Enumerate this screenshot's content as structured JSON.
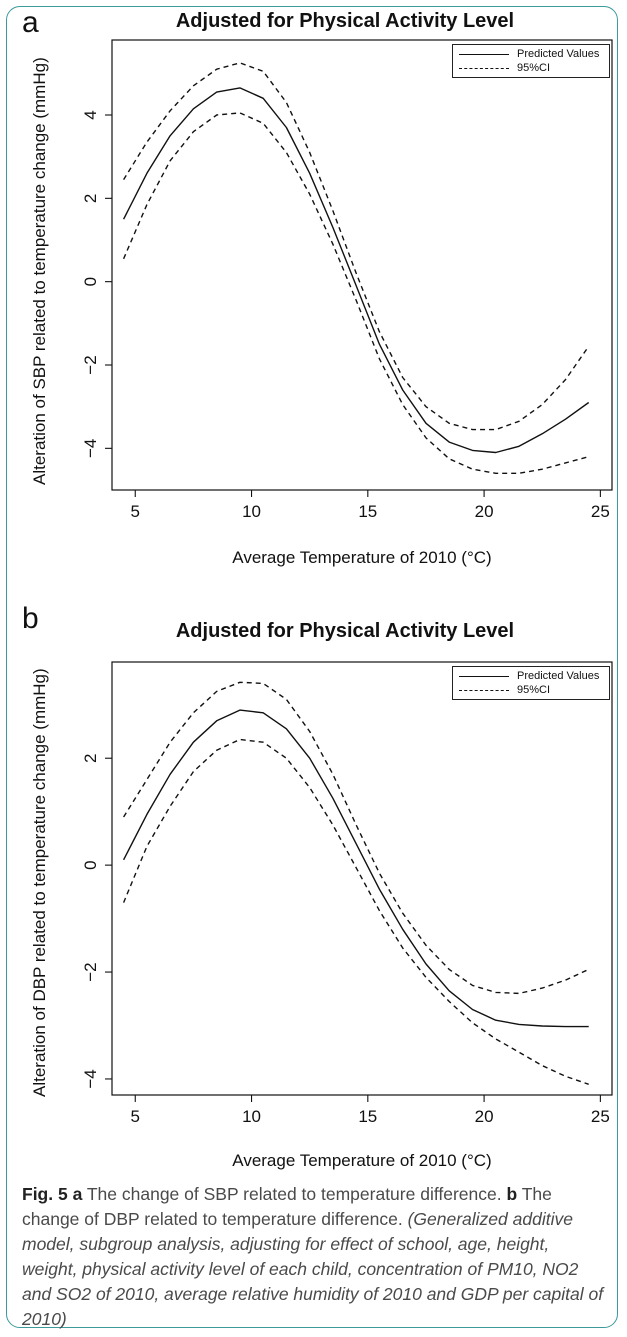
{
  "chart_data": [
    {
      "type": "line",
      "panel_label": "a",
      "title": "Adjusted for Physical Activity Level",
      "xlabel": "Average Temperature of 2010 (°C)",
      "ylabel": "Alteration of SBP related to temperature change (mmHg)",
      "xlim": [
        4,
        25.5
      ],
      "ylim": [
        -5,
        5.8
      ],
      "x_ticks": [
        5,
        10,
        15,
        20,
        25
      ],
      "y_ticks": [
        -4,
        -2,
        0,
        2,
        4
      ],
      "legend_position": "top-right",
      "grid": false,
      "series": [
        {
          "name": "Predicted Values",
          "style": "solid",
          "x": [
            4.5,
            5.5,
            6.5,
            7.5,
            8.5,
            9.5,
            10.5,
            11.5,
            12.5,
            13.5,
            14.5,
            15.5,
            16.5,
            17.5,
            18.5,
            19.5,
            20.5,
            21.5,
            22.5,
            23.5,
            24.5
          ],
          "y": [
            1.5,
            2.6,
            3.5,
            4.15,
            4.55,
            4.65,
            4.4,
            3.7,
            2.6,
            1.3,
            -0.1,
            -1.5,
            -2.6,
            -3.4,
            -3.85,
            -4.05,
            -4.1,
            -3.95,
            -3.65,
            -3.3,
            -2.9
          ]
        },
        {
          "name": "95%CI",
          "style": "dashed",
          "x": [
            4.5,
            5.5,
            6.5,
            7.5,
            8.5,
            9.5,
            10.5,
            11.5,
            12.5,
            13.5,
            14.5,
            15.5,
            16.5,
            17.5,
            18.5,
            19.5,
            20.5,
            21.5,
            22.5,
            23.5,
            24.5
          ],
          "y": [
            2.45,
            3.35,
            4.1,
            4.7,
            5.1,
            5.25,
            5.05,
            4.3,
            3.1,
            1.7,
            0.2,
            -1.2,
            -2.3,
            -3.0,
            -3.4,
            -3.55,
            -3.55,
            -3.35,
            -2.95,
            -2.35,
            -1.55
          ]
        },
        {
          "name": "",
          "style": "dashed",
          "x": [
            4.5,
            5.5,
            6.5,
            7.5,
            8.5,
            9.5,
            10.5,
            11.5,
            12.5,
            13.5,
            14.5,
            15.5,
            16.5,
            17.5,
            18.5,
            19.5,
            20.5,
            21.5,
            22.5,
            23.5,
            24.5
          ],
          "y": [
            0.55,
            1.85,
            2.9,
            3.6,
            4.0,
            4.05,
            3.8,
            3.1,
            2.1,
            0.9,
            -0.45,
            -1.85,
            -2.95,
            -3.75,
            -4.25,
            -4.5,
            -4.6,
            -4.6,
            -4.5,
            -4.35,
            -4.2
          ]
        }
      ]
    },
    {
      "type": "line",
      "panel_label": "b",
      "title": "Adjusted for Physical Activity Level",
      "xlabel": "Average Temperature of 2010 (°C)",
      "ylabel": "Alteration of DBP related to temperature change (mmHg)",
      "xlim": [
        4,
        25.5
      ],
      "ylim": [
        -4.3,
        3.8
      ],
      "x_ticks": [
        5,
        10,
        15,
        20,
        25
      ],
      "y_ticks": [
        -4,
        -2,
        0,
        2
      ],
      "legend_position": "top-right",
      "grid": false,
      "series": [
        {
          "name": "Predicted Values",
          "style": "solid",
          "x": [
            4.5,
            5.5,
            6.5,
            7.5,
            8.5,
            9.5,
            10.5,
            11.5,
            12.5,
            13.5,
            14.5,
            15.5,
            16.5,
            17.5,
            18.5,
            19.5,
            20.5,
            21.5,
            22.5,
            23.5,
            24.5
          ],
          "y": [
            0.1,
            0.95,
            1.7,
            2.3,
            2.7,
            2.9,
            2.85,
            2.55,
            2.0,
            1.25,
            0.4,
            -0.45,
            -1.2,
            -1.85,
            -2.35,
            -2.7,
            -2.9,
            -2.98,
            -3.01,
            -3.02,
            -3.02
          ]
        },
        {
          "name": "95%CI",
          "style": "dashed",
          "x": [
            4.5,
            5.5,
            6.5,
            7.5,
            8.5,
            9.5,
            10.5,
            11.5,
            12.5,
            13.5,
            14.5,
            15.5,
            16.5,
            17.5,
            18.5,
            19.5,
            20.5,
            21.5,
            22.5,
            23.5,
            24.5
          ],
          "y": [
            0.9,
            1.6,
            2.3,
            2.85,
            3.25,
            3.42,
            3.4,
            3.1,
            2.5,
            1.7,
            0.75,
            -0.15,
            -0.9,
            -1.5,
            -1.95,
            -2.25,
            -2.38,
            -2.4,
            -2.3,
            -2.15,
            -1.95
          ]
        },
        {
          "name": "",
          "style": "dashed",
          "x": [
            4.5,
            5.5,
            6.5,
            7.5,
            8.5,
            9.5,
            10.5,
            11.5,
            12.5,
            13.5,
            14.5,
            15.5,
            16.5,
            17.5,
            18.5,
            19.5,
            20.5,
            21.5,
            22.5,
            23.5,
            24.5
          ],
          "y": [
            -0.7,
            0.35,
            1.1,
            1.75,
            2.15,
            2.35,
            2.3,
            2.0,
            1.45,
            0.75,
            -0.05,
            -0.85,
            -1.55,
            -2.1,
            -2.55,
            -2.95,
            -3.25,
            -3.5,
            -3.75,
            -3.95,
            -4.1
          ]
        }
      ]
    }
  ],
  "caption": {
    "fig_label": "Fig. 5",
    "a_label": "a",
    "a_text": " The change of SBP related to temperature difference. ",
    "b_label": "b",
    "b_text": " The change of DBP related to temperature difference. ",
    "note": "(Generalized additive model, subgroup analysis, adjusting for effect of school, age, height, weight, physical activity level of each child, concentration of PM10, NO2 and SO2 of 2010, average relative humidity of 2010 and GDP per capital of 2010)"
  },
  "colors": {
    "frame": "#3c9a9a",
    "lines": "#111111",
    "caption_text": "#4a4a4a"
  }
}
